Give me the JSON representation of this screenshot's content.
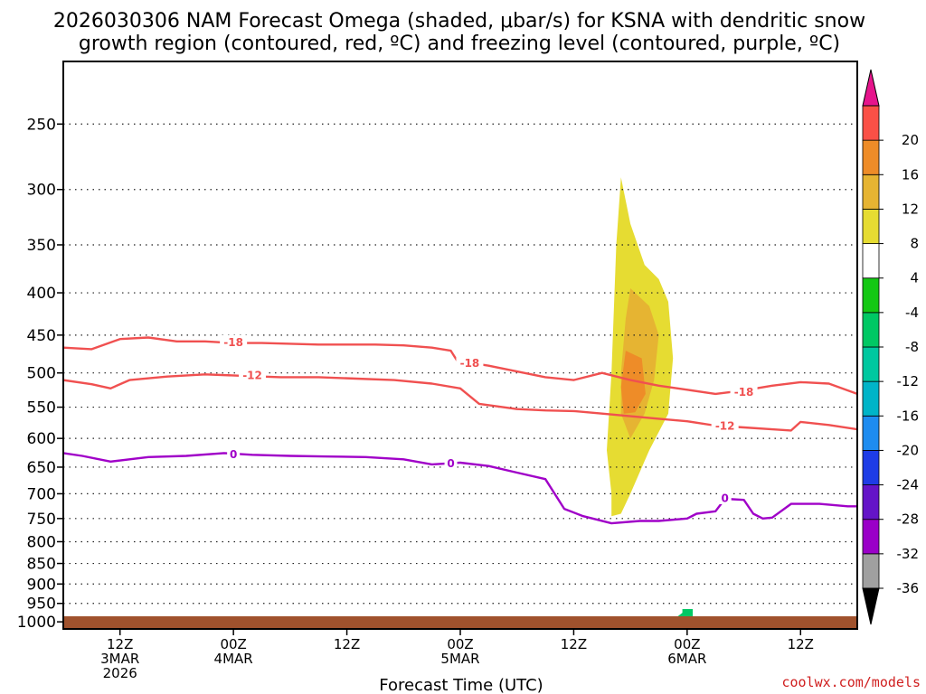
{
  "chart_data": {
    "type": "time-height cross section",
    "title_lines": [
      "2026030306 NAM Forecast Omega (shaded, μbar/s) for KSNA with dendritic snow",
      "growth region (contoured, red, ºC) and freezing level (contoured, purple, ºC)"
    ],
    "xlabel": "Forecast Time (UTC)",
    "ylabel": "",
    "y_axis": {
      "unit": "hPa",
      "scale": "log",
      "inverted": true,
      "range": [
        210,
        1020
      ],
      "ticks": [
        250,
        300,
        350,
        400,
        450,
        500,
        550,
        600,
        650,
        700,
        750,
        800,
        850,
        900,
        950,
        1000
      ]
    },
    "x_axis": {
      "unit": "forecast hour",
      "range": [
        3,
        87
      ],
      "ticks": [
        {
          "hour": 9,
          "lines": [
            "12Z",
            "3MAR",
            "2026"
          ]
        },
        {
          "hour": 21,
          "lines": [
            "00Z",
            "4MAR"
          ]
        },
        {
          "hour": 33,
          "lines": [
            "12Z"
          ]
        },
        {
          "hour": 45,
          "lines": [
            "00Z",
            "5MAR"
          ]
        },
        {
          "hour": 57,
          "lines": [
            "12Z"
          ]
        },
        {
          "hour": 69,
          "lines": [
            "00Z",
            "6MAR"
          ]
        },
        {
          "hour": 81,
          "lines": [
            "12Z"
          ]
        }
      ]
    },
    "colorbar": {
      "levels": [
        -36,
        -32,
        -28,
        -24,
        -20,
        -16,
        -12,
        -8,
        -4,
        4,
        8,
        12,
        16,
        20
      ],
      "colors": [
        "#a0a0a0",
        "#9a00c8",
        "#6414c8",
        "#1e3ce6",
        "#1e8cf0",
        "#00b4c8",
        "#00c8a0",
        "#00c864",
        "#14c814",
        "#ffffff",
        "#e6dc32",
        "#e6b432",
        "#ee8c28",
        "#fa5046"
      ],
      "under_color": "#000000",
      "over_color": "#e6148c"
    },
    "terrain_color": "#a0522d",
    "contours": [
      {
        "name": "dgz-minus-18",
        "label": "-18",
        "color": "#f05050",
        "points": [
          [
            3,
            466
          ],
          [
            6,
            468
          ],
          [
            9,
            455
          ],
          [
            12,
            453
          ],
          [
            15,
            458
          ],
          [
            18,
            458
          ],
          [
            21,
            460
          ],
          [
            24,
            460
          ],
          [
            27,
            461
          ],
          [
            30,
            462
          ],
          [
            33,
            462
          ],
          [
            36,
            462
          ],
          [
            39,
            463
          ],
          [
            42,
            466
          ],
          [
            44,
            470
          ],
          [
            45,
            490
          ],
          [
            46,
            486
          ],
          [
            48,
            490
          ],
          [
            51,
            498
          ],
          [
            54,
            506
          ],
          [
            57,
            510
          ],
          [
            60,
            500
          ],
          [
            63,
            510
          ],
          [
            66,
            518
          ],
          [
            69,
            524
          ],
          [
            72,
            530
          ],
          [
            75,
            525
          ],
          [
            78,
            518
          ],
          [
            81,
            513
          ],
          [
            84,
            515
          ],
          [
            87,
            530
          ]
        ],
        "labels": [
          [
            21,
            459
          ],
          [
            46,
            486
          ],
          [
            75,
            527
          ]
        ]
      },
      {
        "name": "dgz-minus-12",
        "label": "-12",
        "color": "#f05050",
        "points": [
          [
            3,
            510
          ],
          [
            6,
            516
          ],
          [
            8,
            522
          ],
          [
            10,
            510
          ],
          [
            14,
            505
          ],
          [
            18,
            502
          ],
          [
            22,
            504
          ],
          [
            26,
            506
          ],
          [
            30,
            506
          ],
          [
            34,
            508
          ],
          [
            38,
            510
          ],
          [
            42,
            515
          ],
          [
            45,
            522
          ],
          [
            47,
            545
          ],
          [
            51,
            553
          ],
          [
            54,
            555
          ],
          [
            57,
            556
          ],
          [
            60,
            560
          ],
          [
            63,
            564
          ],
          [
            66,
            568
          ],
          [
            69,
            572
          ],
          [
            72,
            579
          ],
          [
            75,
            582
          ],
          [
            78,
            585
          ],
          [
            80,
            587
          ],
          [
            81,
            573
          ],
          [
            84,
            578
          ],
          [
            87,
            585
          ]
        ],
        "labels": [
          [
            23,
            503
          ],
          [
            73,
            579
          ]
        ]
      },
      {
        "name": "freezing-level-0",
        "label": "0",
        "color": "#a000c8",
        "points": [
          [
            3,
            625
          ],
          [
            5,
            630
          ],
          [
            8,
            640
          ],
          [
            12,
            632
          ],
          [
            16,
            630
          ],
          [
            20,
            625
          ],
          [
            23,
            628
          ],
          [
            27,
            630
          ],
          [
            31,
            631
          ],
          [
            35,
            632
          ],
          [
            39,
            636
          ],
          [
            42,
            645
          ],
          [
            45,
            642
          ],
          [
            48,
            648
          ],
          [
            51,
            660
          ],
          [
            54,
            672
          ],
          [
            56,
            730
          ],
          [
            58,
            745
          ],
          [
            61,
            760
          ],
          [
            64,
            755
          ],
          [
            66,
            755
          ],
          [
            69,
            750
          ],
          [
            70,
            740
          ],
          [
            72,
            735
          ],
          [
            73,
            710
          ],
          [
            75,
            712
          ],
          [
            76,
            740
          ],
          [
            77,
            750
          ],
          [
            78,
            748
          ],
          [
            80,
            720
          ],
          [
            83,
            720
          ],
          [
            86,
            725
          ],
          [
            87,
            725
          ]
        ],
        "labels": [
          [
            21,
            627
          ],
          [
            44,
            643
          ],
          [
            73,
            708
          ]
        ]
      }
    ],
    "shaded_regions": [
      {
        "name": "omega-4-main",
        "value_range": [
          4,
          8
        ],
        "points": [
          [
            60,
            233
          ],
          [
            63,
            233
          ],
          [
            64.5,
            280
          ],
          [
            66,
            310
          ],
          [
            68,
            325
          ],
          [
            68.5,
            380
          ],
          [
            72,
            450
          ],
          [
            73,
            510
          ],
          [
            71,
            540
          ],
          [
            69,
            590
          ],
          [
            66,
            690
          ],
          [
            63,
            760
          ],
          [
            61,
            780
          ],
          [
            60,
            830
          ],
          [
            59,
            800
          ],
          [
            57,
            770
          ],
          [
            56,
            700
          ],
          [
            58,
            600
          ],
          [
            59,
            500
          ],
          [
            59,
            400
          ],
          [
            59.5,
            300
          ]
        ]
      },
      {
        "name": "omega-4-5mar",
        "value_range": [
          4,
          8
        ],
        "points": [
          [
            45,
            495
          ],
          [
            45.6,
            520
          ],
          [
            45.3,
            580
          ],
          [
            44.8,
            585
          ],
          [
            44.5,
            540
          ]
        ]
      },
      {
        "name": "omega-4-6mar",
        "value_range": [
          4,
          8
        ],
        "points": [
          [
            70,
            760
          ],
          [
            71.5,
            770
          ],
          [
            72,
            830
          ],
          [
            72.5,
            870
          ],
          [
            72,
            880
          ],
          [
            71,
            850
          ],
          [
            70,
            810
          ]
        ]
      },
      {
        "name": "omega-4-sfc",
        "value_range": [
          4,
          8
        ],
        "points": [
          [
            84.5,
            950
          ],
          [
            86.5,
            935
          ],
          [
            87,
            935
          ],
          [
            87,
            980
          ],
          [
            84,
            980
          ],
          [
            85,
            960
          ]
        ]
      },
      {
        "name": "omega-8",
        "value_range": [
          8,
          12
        ],
        "points": [
          [
            62,
            290
          ],
          [
            63,
            330
          ],
          [
            64.5,
            370
          ],
          [
            66,
            385
          ],
          [
            67,
            410
          ],
          [
            67.5,
            480
          ],
          [
            67,
            560
          ],
          [
            65,
            620
          ],
          [
            63,
            700
          ],
          [
            62,
            740
          ],
          [
            61,
            745
          ],
          [
            61,
            700
          ],
          [
            60.5,
            620
          ],
          [
            61,
            500
          ],
          [
            61.5,
            350
          ]
        ]
      },
      {
        "name": "omega-12",
        "value_range": [
          12,
          16
        ],
        "points": [
          [
            63,
            395
          ],
          [
            65,
            415
          ],
          [
            66,
            450
          ],
          [
            65.5,
            510
          ],
          [
            64.5,
            560
          ],
          [
            63,
            600
          ],
          [
            62,
            560
          ],
          [
            62,
            500
          ],
          [
            62.5,
            430
          ]
        ]
      },
      {
        "name": "omega-16",
        "value_range": [
          16,
          20
        ],
        "points": [
          [
            62.5,
            470
          ],
          [
            64.2,
            480
          ],
          [
            64.6,
            530
          ],
          [
            63.5,
            558
          ],
          [
            62.3,
            560
          ],
          [
            62,
            520
          ]
        ]
      },
      {
        "name": "omega-neg4-sfc",
        "value_range": [
          -8,
          -4
        ],
        "points": [
          [
            68.5,
            965
          ],
          [
            69.6,
            965
          ],
          [
            69.6,
            985
          ],
          [
            68,
            985
          ],
          [
            68.5,
            975
          ]
        ]
      }
    ]
  },
  "credit": "coolwx.com/models"
}
